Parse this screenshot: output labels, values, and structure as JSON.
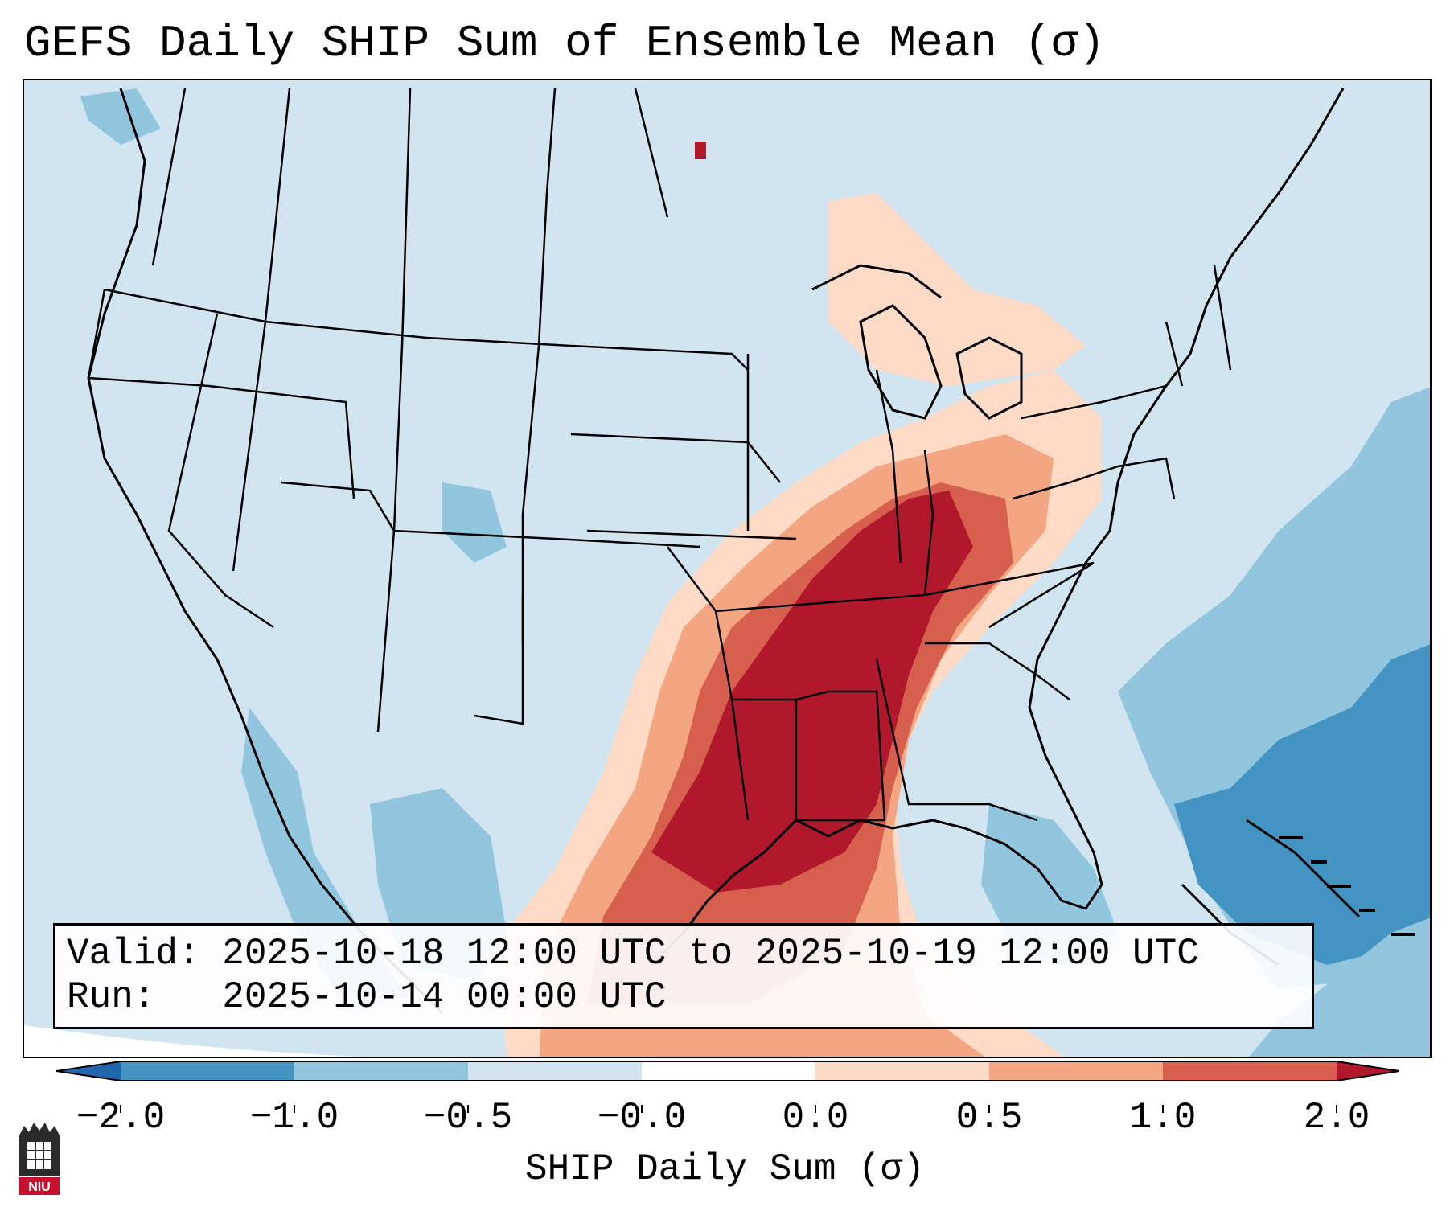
{
  "title": "GEFS Daily SHIP Sum of Ensemble Mean (σ)",
  "info": {
    "valid_label": "Valid:",
    "valid_value": "2025-10-18 12:00 UTC to 2025-10-19 12:00 UTC",
    "run_label": "Run:",
    "run_value": "2025-10-14 00:00 UTC"
  },
  "colorbar": {
    "label": "SHIP Daily Sum (σ)",
    "ticks": [
      "−2.0",
      "−1.0",
      "−0.5",
      "−0.0",
      "0.0",
      "0.5",
      "1.0",
      "2.0"
    ],
    "colors": [
      "#2166ac",
      "#4393c3",
      "#92c5de",
      "#d1e5f0",
      "#ffffff",
      "#fddbc7",
      "#f4a582",
      "#d6604d",
      "#b2182b"
    ]
  },
  "logo": {
    "text": "NIU"
  },
  "map": {
    "background_color": "#d1e5f0",
    "high_color": "#b2182b",
    "low_color": "#2166ac"
  }
}
